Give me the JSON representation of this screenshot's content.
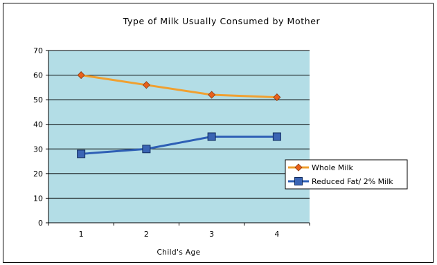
{
  "chart_data": {
    "type": "line",
    "title": "Type of Milk Usually Consumed by Mother",
    "xlabel": "Child's Age",
    "ylabel": "",
    "categories": [
      "1",
      "2",
      "3",
      "4"
    ],
    "ylim": [
      0,
      70
    ],
    "yticks": [
      0,
      10,
      20,
      30,
      40,
      50,
      60,
      70
    ],
    "grid": true,
    "legend_position": "right",
    "plot_background": "#b3dde6",
    "series": [
      {
        "name": "Whole Milk",
        "values": [
          60,
          56,
          52,
          51
        ],
        "line_color": "#f0a030",
        "marker_color": "#e8601c",
        "marker": "diamond"
      },
      {
        "name": "Reduced Fat/ 2% Milk",
        "values": [
          28,
          30,
          35,
          35
        ],
        "line_color": "#2e5fb5",
        "marker_color": "#3a64b4",
        "marker": "square"
      }
    ]
  }
}
